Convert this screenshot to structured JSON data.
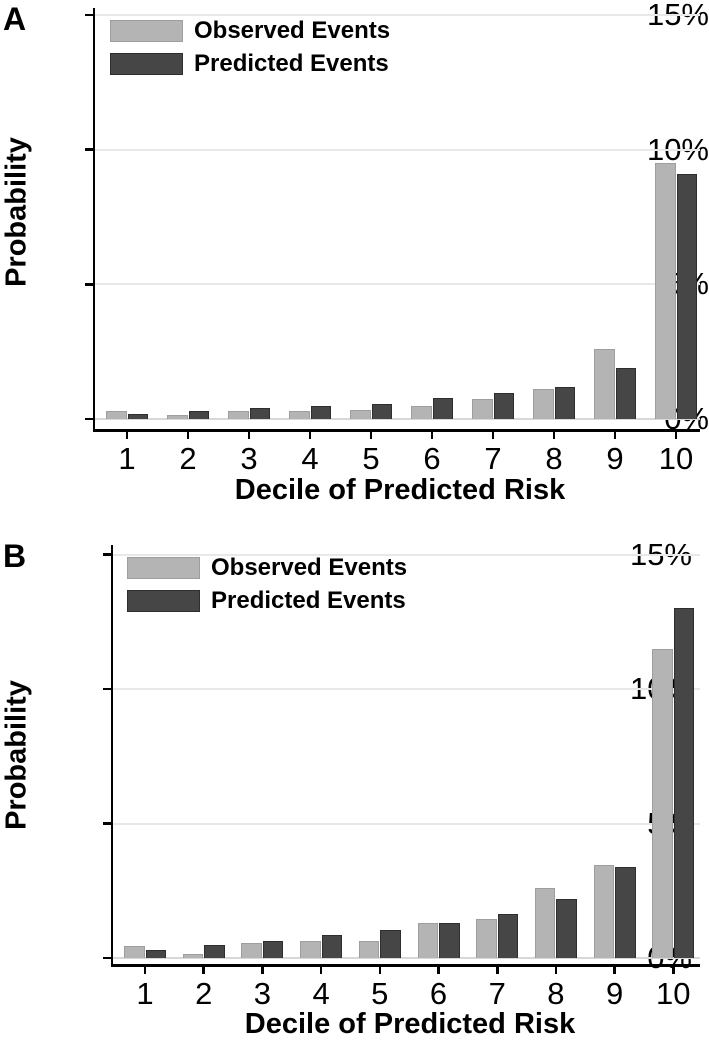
{
  "figure_title": "Calibration bar charts: observed vs predicted event probabilities by risk decile",
  "colors": {
    "observed_fill": "#b4b4b4",
    "observed_border": "#9e9e9e",
    "predicted_fill": "#464646",
    "predicted_border": "#2e2e2e",
    "gridline": "#e8e8e8",
    "baseline": "#d8d8d8",
    "axis": "#000000"
  },
  "chart_data": [
    {
      "type": "bar",
      "panel": "A",
      "categories": [
        "1",
        "2",
        "3",
        "4",
        "5",
        "6",
        "7",
        "8",
        "9",
        "10"
      ],
      "series": [
        {
          "name": "Observed Events",
          "color": "#b4b4b4",
          "values": [
            0.3,
            0.15,
            0.3,
            0.3,
            0.35,
            0.5,
            0.75,
            1.1,
            2.6,
            9.5
          ]
        },
        {
          "name": "Predicted Events",
          "color": "#464646",
          "values": [
            0.2,
            0.3,
            0.4,
            0.5,
            0.55,
            0.8,
            0.95,
            1.2,
            1.9,
            9.1
          ]
        }
      ],
      "xlabel": "Decile of Predicted Risk",
      "ylabel": "Probability",
      "ylim": [
        0,
        15
      ],
      "y_tick_values": [
        0,
        5,
        10,
        15
      ],
      "y_tick_labels": [
        "0%",
        "5%",
        "10%",
        "15%"
      ],
      "unit": "percent",
      "grid": true,
      "legend_position": "top-left"
    },
    {
      "type": "bar",
      "panel": "B",
      "categories": [
        "1",
        "2",
        "3",
        "4",
        "5",
        "6",
        "7",
        "8",
        "9",
        "10"
      ],
      "series": [
        {
          "name": "Observed Events",
          "color": "#b4b4b4",
          "values": [
            0.45,
            0.15,
            0.55,
            0.65,
            0.65,
            1.3,
            1.45,
            2.6,
            3.45,
            11.5
          ]
        },
        {
          "name": "Predicted Events",
          "color": "#464646",
          "values": [
            0.3,
            0.5,
            0.65,
            0.85,
            1.05,
            1.3,
            1.65,
            2.2,
            3.4,
            13.0
          ]
        }
      ],
      "xlabel": "Decile of Predicted Risk",
      "ylabel": "Probability",
      "ylim": [
        0,
        15
      ],
      "y_tick_values": [
        0,
        5,
        10,
        15
      ],
      "y_tick_labels": [
        "0%",
        "5%",
        "10%",
        "15%"
      ],
      "unit": "percent",
      "grid": true,
      "legend_position": "top-left"
    }
  ]
}
